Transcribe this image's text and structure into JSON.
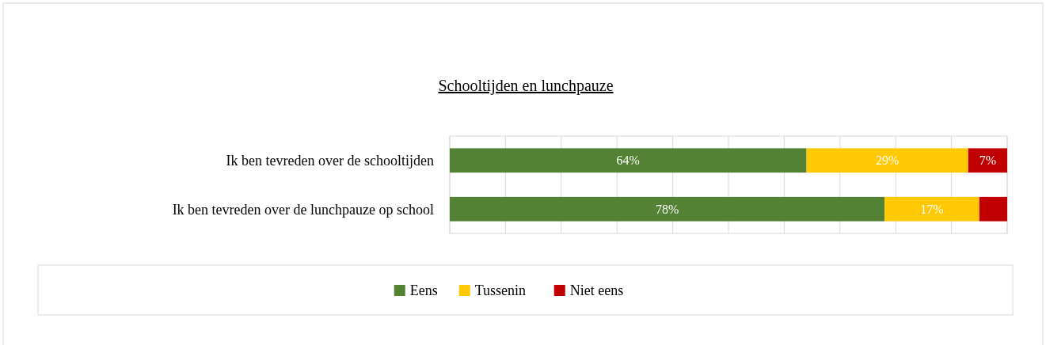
{
  "chart_data": {
    "type": "bar",
    "orientation": "horizontal",
    "stacked": true,
    "title": "Schooltijden en lunchpauze",
    "categories": [
      "Ik ben tevreden over de schooltijden",
      "Ik ben tevreden over de lunchpauze op school"
    ],
    "series": [
      {
        "name": "Eens",
        "color": "#548235",
        "values": [
          64,
          78
        ],
        "value_labels": [
          "64%",
          "78%"
        ]
      },
      {
        "name": "Tussenin",
        "color": "#ffc905",
        "values": [
          29,
          17
        ],
        "value_labels": [
          "29%",
          "17%"
        ]
      },
      {
        "name": "Niet eens",
        "color": "#c00000",
        "values": [
          7,
          5
        ],
        "value_labels": [
          "7%",
          null
        ]
      }
    ],
    "xlim": [
      0,
      100
    ],
    "xticks": [
      {
        "value": 0,
        "label": null
      },
      {
        "value": 10,
        "label": null
      },
      {
        "value": 20,
        "label": null
      },
      {
        "value": 30,
        "label": null
      },
      {
        "value": 40,
        "label": null
      },
      {
        "value": 50,
        "label": null
      },
      {
        "value": 60,
        "label": null
      },
      {
        "value": 70,
        "label": null
      },
      {
        "value": 80,
        "label": null
      },
      {
        "value": 90,
        "label": null
      },
      {
        "value": 100,
        "label": null
      }
    ],
    "tick_labels": "y",
    "grid": "x",
    "legend": "bottom"
  }
}
